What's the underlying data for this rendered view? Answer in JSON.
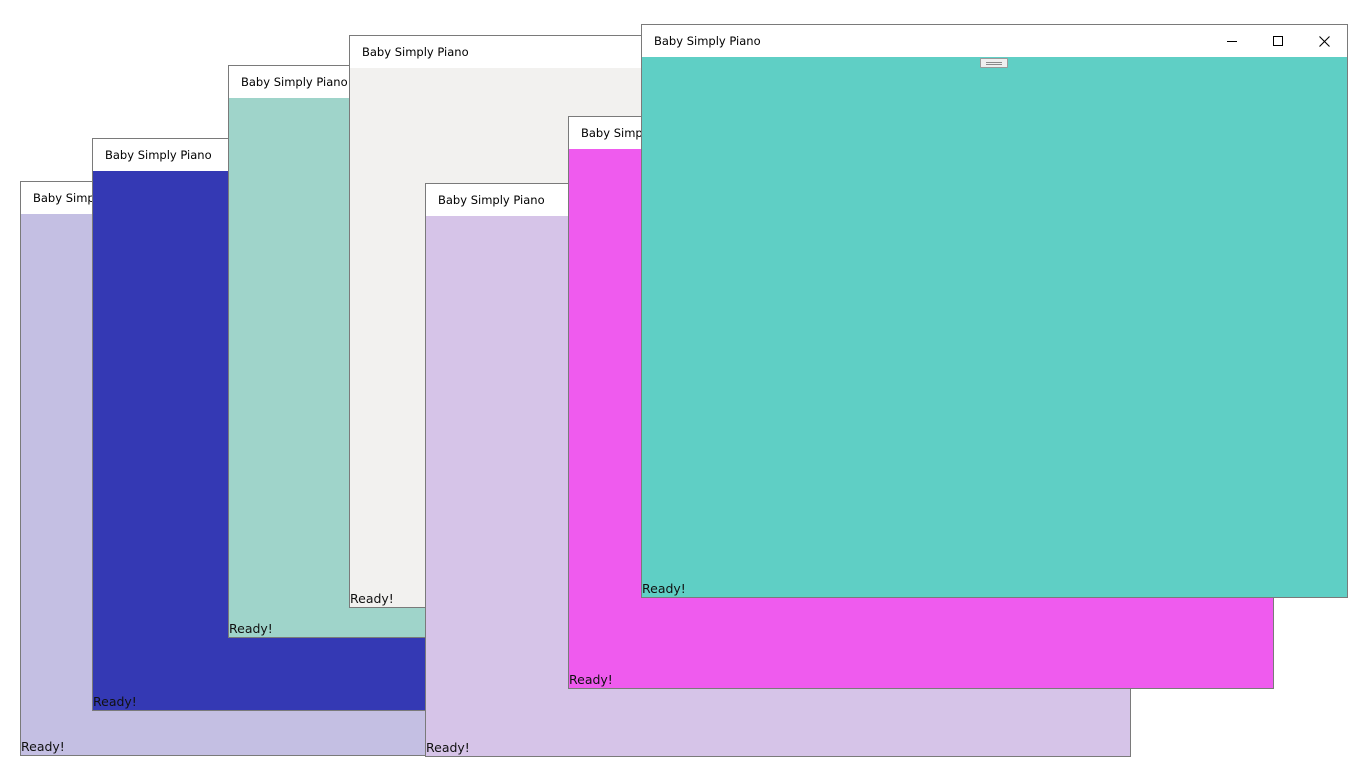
{
  "windows": [
    {
      "id": "w1",
      "title": "Baby Simply Piano",
      "status": "Ready!",
      "background": "#c4bfe3"
    },
    {
      "id": "w2",
      "title": "Baby Simply Piano",
      "status": "Ready!",
      "background": "#3439b4"
    },
    {
      "id": "w3",
      "title": "Baby Simply Piano",
      "status": "Ready!",
      "background": "#9fd4ca"
    },
    {
      "id": "w4",
      "title": "Baby Simply Piano",
      "status": "Ready!",
      "background": "#f2f1ef"
    },
    {
      "id": "w5",
      "title": "Baby Simply Piano",
      "status": "Ready!",
      "background": "#d6c4e8"
    },
    {
      "id": "w6",
      "title": "Baby Simply Piano",
      "status": "Ready!",
      "background": "#ef5bee"
    },
    {
      "id": "w7",
      "title": "Baby Simply Piano",
      "status": "Ready!",
      "background": "#5fcfc5",
      "controls": {
        "minimize": "minimize-icon",
        "maximize": "maximize-icon",
        "close": "close-icon"
      }
    }
  ]
}
